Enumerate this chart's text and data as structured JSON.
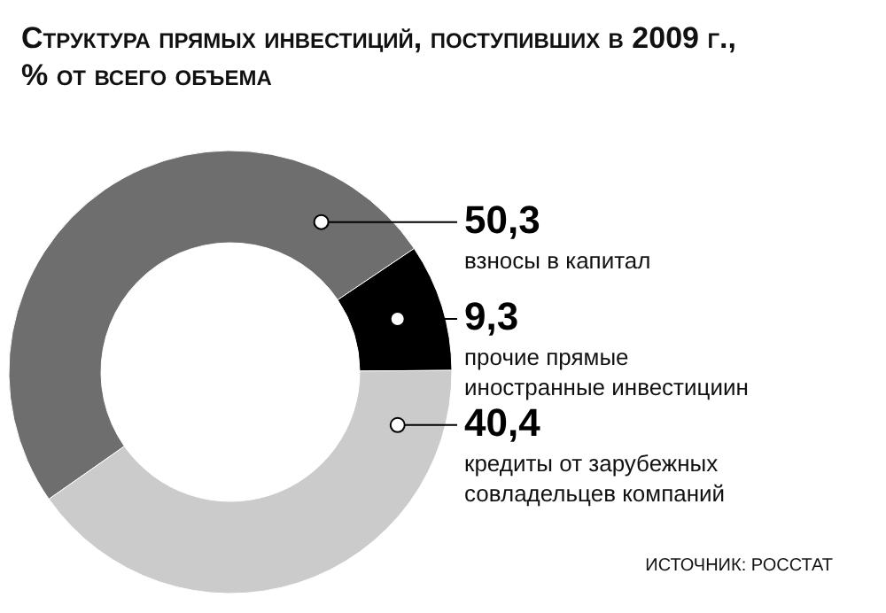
{
  "chart_data": {
    "type": "donut",
    "title": "Структура прямых инвестиций, поступивших в 2009 г.,",
    "subtitle": "% от всего объема",
    "categories": [
      "взносы в капитал",
      "прочие прямые иностранные инвестициин",
      "кредиты от зарубежных совладельцев компаний"
    ],
    "values": [
      50.3,
      9.3,
      40.4
    ],
    "value_labels": [
      "50,3",
      "9,3",
      "40,4"
    ],
    "colors": [
      "#6e6e6e",
      "#000000",
      "#cbcbcb"
    ],
    "annotations": [
      "ИСТОЧНИК: РОССТАТ"
    ]
  }
}
